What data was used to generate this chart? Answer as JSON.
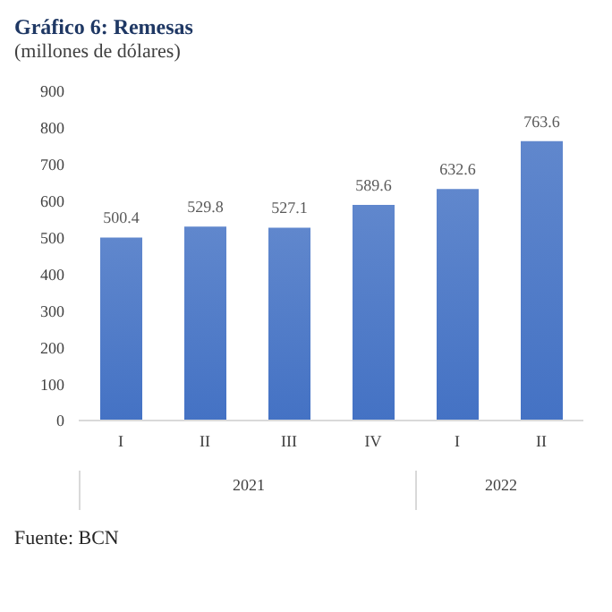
{
  "chart_data": {
    "type": "bar",
    "title": "Gráfico 6:  Remesas",
    "subtitle": "(millones de dólares)",
    "categories": [
      "I",
      "II",
      "III",
      "IV",
      "I",
      "II"
    ],
    "values": [
      500.4,
      529.8,
      527.1,
      589.6,
      632.6,
      763.6
    ],
    "color": "#4472c4",
    "ylim": [
      0,
      900
    ],
    "yticks": [
      0,
      100,
      200,
      300,
      400,
      500,
      600,
      700,
      800,
      900
    ],
    "data_labels": true,
    "annotations": [
      "2021",
      "2022",
      "Fuente: BCN"
    ]
  }
}
